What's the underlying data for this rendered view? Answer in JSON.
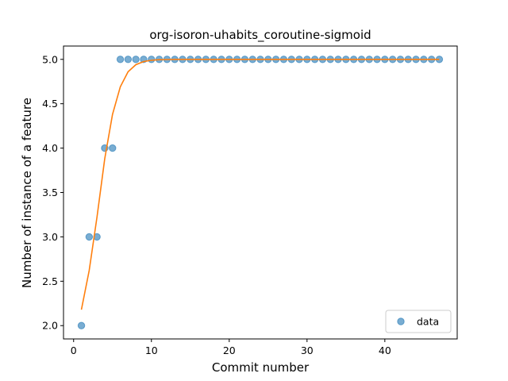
{
  "chart_data": {
    "type": "scatter",
    "title": "org-isoron-uhabits_coroutine-sigmoid",
    "xlabel": "Commit number",
    "ylabel": "Number of instance of a feature",
    "xlim": [
      -1.3,
      49.3
    ],
    "ylim": [
      1.85,
      5.15
    ],
    "x_ticks": [
      0,
      10,
      20,
      30,
      40
    ],
    "y_ticks": [
      2.0,
      2.5,
      3.0,
      3.5,
      4.0,
      4.5,
      5.0
    ],
    "x_tick_labels": [
      "0",
      "10",
      "20",
      "30",
      "40"
    ],
    "y_tick_labels": [
      "2.0",
      "2.5",
      "3.0",
      "3.5",
      "4.0",
      "4.5",
      "5.0"
    ],
    "grid": false,
    "legend_position": "lower-right",
    "series": [
      {
        "name": "data",
        "kind": "scatter",
        "color": "#1f77b4",
        "x": [
          1,
          2,
          3,
          4,
          5,
          6,
          7,
          8,
          9,
          10,
          11,
          12,
          13,
          14,
          15,
          16,
          17,
          18,
          19,
          20,
          21,
          22,
          23,
          24,
          25,
          26,
          27,
          28,
          29,
          30,
          31,
          32,
          33,
          34,
          35,
          36,
          37,
          38,
          39,
          40,
          41,
          42,
          43,
          44,
          45,
          46,
          47
        ],
        "y": [
          2,
          3,
          3,
          4,
          4,
          5,
          5,
          5,
          5,
          5,
          5,
          5,
          5,
          5,
          5,
          5,
          5,
          5,
          5,
          5,
          5,
          5,
          5,
          5,
          5,
          5,
          5,
          5,
          5,
          5,
          5,
          5,
          5,
          5,
          5,
          5,
          5,
          5,
          5,
          5,
          5,
          5,
          5,
          5,
          5,
          5,
          5
        ]
      },
      {
        "kind": "line",
        "color": "#ff7f0e",
        "x": [
          1,
          2,
          3,
          4,
          5,
          6,
          7,
          8,
          9,
          10,
          11,
          12,
          13,
          14,
          15,
          16,
          17,
          18,
          19,
          20,
          21,
          22,
          23,
          24,
          25,
          26,
          27,
          28,
          29,
          30,
          31,
          32,
          33,
          34,
          35,
          36,
          37,
          38,
          39,
          40,
          41,
          42,
          43,
          44,
          45,
          46,
          47
        ],
        "y": [
          2.18,
          2.62,
          3.22,
          3.88,
          4.38,
          4.69,
          4.86,
          4.94,
          4.975,
          4.99,
          4.996,
          4.998,
          5,
          5,
          5,
          5,
          5,
          5,
          5,
          5,
          5,
          5,
          5,
          5,
          5,
          5,
          5,
          5,
          5,
          5,
          5,
          5,
          5,
          5,
          5,
          5,
          5,
          5,
          5,
          5,
          5,
          5,
          5,
          5,
          5,
          5,
          5
        ]
      }
    ]
  }
}
